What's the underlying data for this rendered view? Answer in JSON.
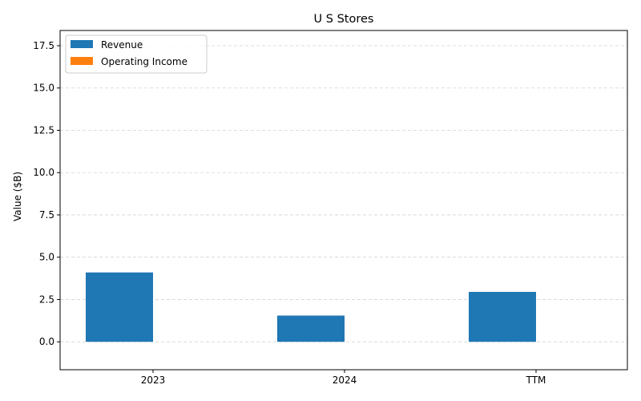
{
  "chart_data": {
    "type": "bar",
    "title": "U S Stores",
    "xlabel": "",
    "ylabel": "Value ($B)",
    "categories": [
      "2023",
      "2024",
      "TTM"
    ],
    "series": [
      {
        "name": "Revenue",
        "values": [
          4.1,
          1.55,
          2.95
        ],
        "color": "#1f77b4"
      },
      {
        "name": "Operating Income",
        "values": [
          0,
          0,
          0
        ],
        "color": "#ff7f0e"
      }
    ],
    "ylim": [
      -1.65,
      18.4
    ],
    "yticks": [
      0.0,
      2.5,
      5.0,
      7.5,
      10.0,
      12.5,
      15.0,
      17.5
    ],
    "ytick_labels": [
      "0.0",
      "2.5",
      "5.0",
      "7.5",
      "10.0",
      "12.5",
      "15.0",
      "17.5"
    ],
    "grid": true,
    "legend_position": "top-left"
  }
}
